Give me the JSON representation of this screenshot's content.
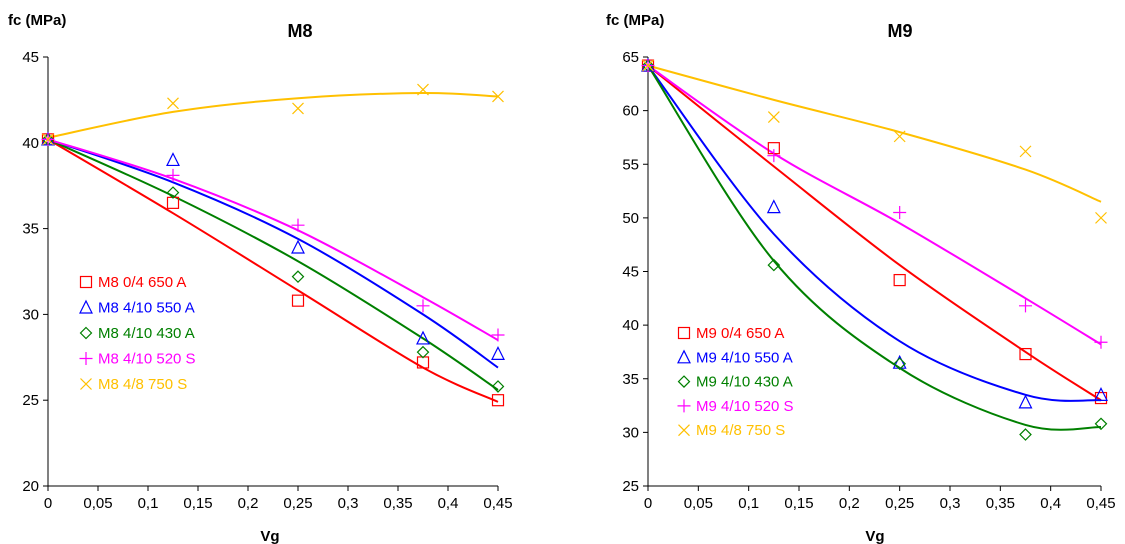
{
  "chart_data": [
    {
      "type": "scatter",
      "title": "M8",
      "ylabel": "fc (MPa)",
      "xlabel": "Vg",
      "xlim": [
        0,
        0.45
      ],
      "ylim": [
        20,
        45
      ],
      "xticks": [
        "0",
        "0,05",
        "0,1",
        "0,15",
        "0,2",
        "0,25",
        "0,3",
        "0,35",
        "0,4",
        "0,45"
      ],
      "yticks": [
        "20",
        "25",
        "30",
        "35",
        "40",
        "45"
      ],
      "grid": false,
      "legend_position": "left",
      "series": [
        {
          "name": "M8 0/4 650 A",
          "color": "#ff0000",
          "marker": "square",
          "x": [
            0,
            0.125,
            0.25,
            0.375,
            0.45
          ],
          "y": [
            40.2,
            36.5,
            30.8,
            27.2,
            25.0
          ],
          "trend": [
            40.2,
            35.9,
            31.4,
            26.9,
            24.9
          ]
        },
        {
          "name": "M8 4/10 550 A",
          "color": "#0000ff",
          "marker": "triangle",
          "x": [
            0,
            0.125,
            0.25,
            0.375,
            0.45
          ],
          "y": [
            40.2,
            39.0,
            33.9,
            28.6,
            27.7
          ],
          "trend": [
            40.2,
            37.7,
            34.4,
            30.0,
            26.9
          ]
        },
        {
          "name": "M8 4/10 430 A",
          "color": "#008000",
          "marker": "diamond",
          "x": [
            0,
            0.125,
            0.25,
            0.375,
            0.45
          ],
          "y": [
            40.2,
            37.1,
            32.2,
            27.8,
            25.8
          ],
          "trend": [
            40.2,
            36.9,
            33.1,
            28.6,
            25.6
          ]
        },
        {
          "name": "M8 4/10 520 S",
          "color": "#ff00ff",
          "marker": "plus",
          "x": [
            0,
            0.125,
            0.25,
            0.375,
            0.45
          ],
          "y": [
            40.2,
            38.1,
            35.2,
            30.5,
            28.8
          ],
          "trend": [
            40.2,
            37.9,
            34.9,
            31.0,
            28.5
          ]
        },
        {
          "name": "M8 4/8 750 S",
          "color": "#ffc000",
          "marker": "x",
          "x": [
            0,
            0.125,
            0.25,
            0.375,
            0.45
          ],
          "y": [
            40.2,
            42.3,
            42.0,
            43.1,
            42.7
          ],
          "trend": [
            40.3,
            41.8,
            42.6,
            42.9,
            42.7
          ]
        }
      ]
    },
    {
      "type": "scatter",
      "title": "M9",
      "ylabel": "fc (MPa)",
      "xlabel": "Vg",
      "xlim": [
        0,
        0.45
      ],
      "ylim": [
        25,
        65
      ],
      "xticks": [
        "0",
        "0,05",
        "0,1",
        "0,15",
        "0,2",
        "0,25",
        "0,3",
        "0,35",
        "0,4",
        "0,45"
      ],
      "yticks": [
        "25",
        "30",
        "35",
        "40",
        "45",
        "50",
        "55",
        "60",
        "65"
      ],
      "grid": false,
      "legend_position": "bottom-left",
      "series": [
        {
          "name": "M9 0/4 650 A",
          "color": "#ff0000",
          "marker": "square",
          "x": [
            0,
            0.125,
            0.25,
            0.375,
            0.45
          ],
          "y": [
            64.2,
            56.5,
            44.2,
            37.3,
            33.2
          ],
          "trend": [
            64.2,
            54.8,
            45.6,
            37.5,
            33.0
          ]
        },
        {
          "name": "M9 4/10 550 A",
          "color": "#0000ff",
          "marker": "triangle",
          "x": [
            0,
            0.125,
            0.25,
            0.375,
            0.45
          ],
          "y": [
            64.2,
            51.0,
            36.5,
            32.8,
            33.5
          ],
          "trend": [
            64.2,
            48.5,
            38.5,
            33.5,
            33.0
          ]
        },
        {
          "name": "M9 4/10 430 A",
          "color": "#008000",
          "marker": "diamond",
          "x": [
            0,
            0.125,
            0.25,
            0.375,
            0.45
          ],
          "y": [
            64.2,
            45.6,
            36.4,
            29.8,
            30.8
          ],
          "trend": [
            64.2,
            46.0,
            36.0,
            30.7,
            30.5
          ]
        },
        {
          "name": "M9 4/10 520 S",
          "color": "#ff00ff",
          "marker": "plus",
          "x": [
            0,
            0.125,
            0.25,
            0.375,
            0.45
          ],
          "y": [
            64.2,
            55.8,
            50.5,
            41.8,
            38.4
          ],
          "trend": [
            64.2,
            56.0,
            49.5,
            42.5,
            38.2
          ]
        },
        {
          "name": "M9 4/8 750 S",
          "color": "#ffc000",
          "marker": "x",
          "x": [
            0,
            0.125,
            0.25,
            0.375,
            0.45
          ],
          "y": [
            64.2,
            59.4,
            57.6,
            56.2,
            50.0
          ],
          "trend": [
            64.2,
            61.0,
            58.0,
            54.5,
            51.5
          ]
        }
      ]
    }
  ]
}
